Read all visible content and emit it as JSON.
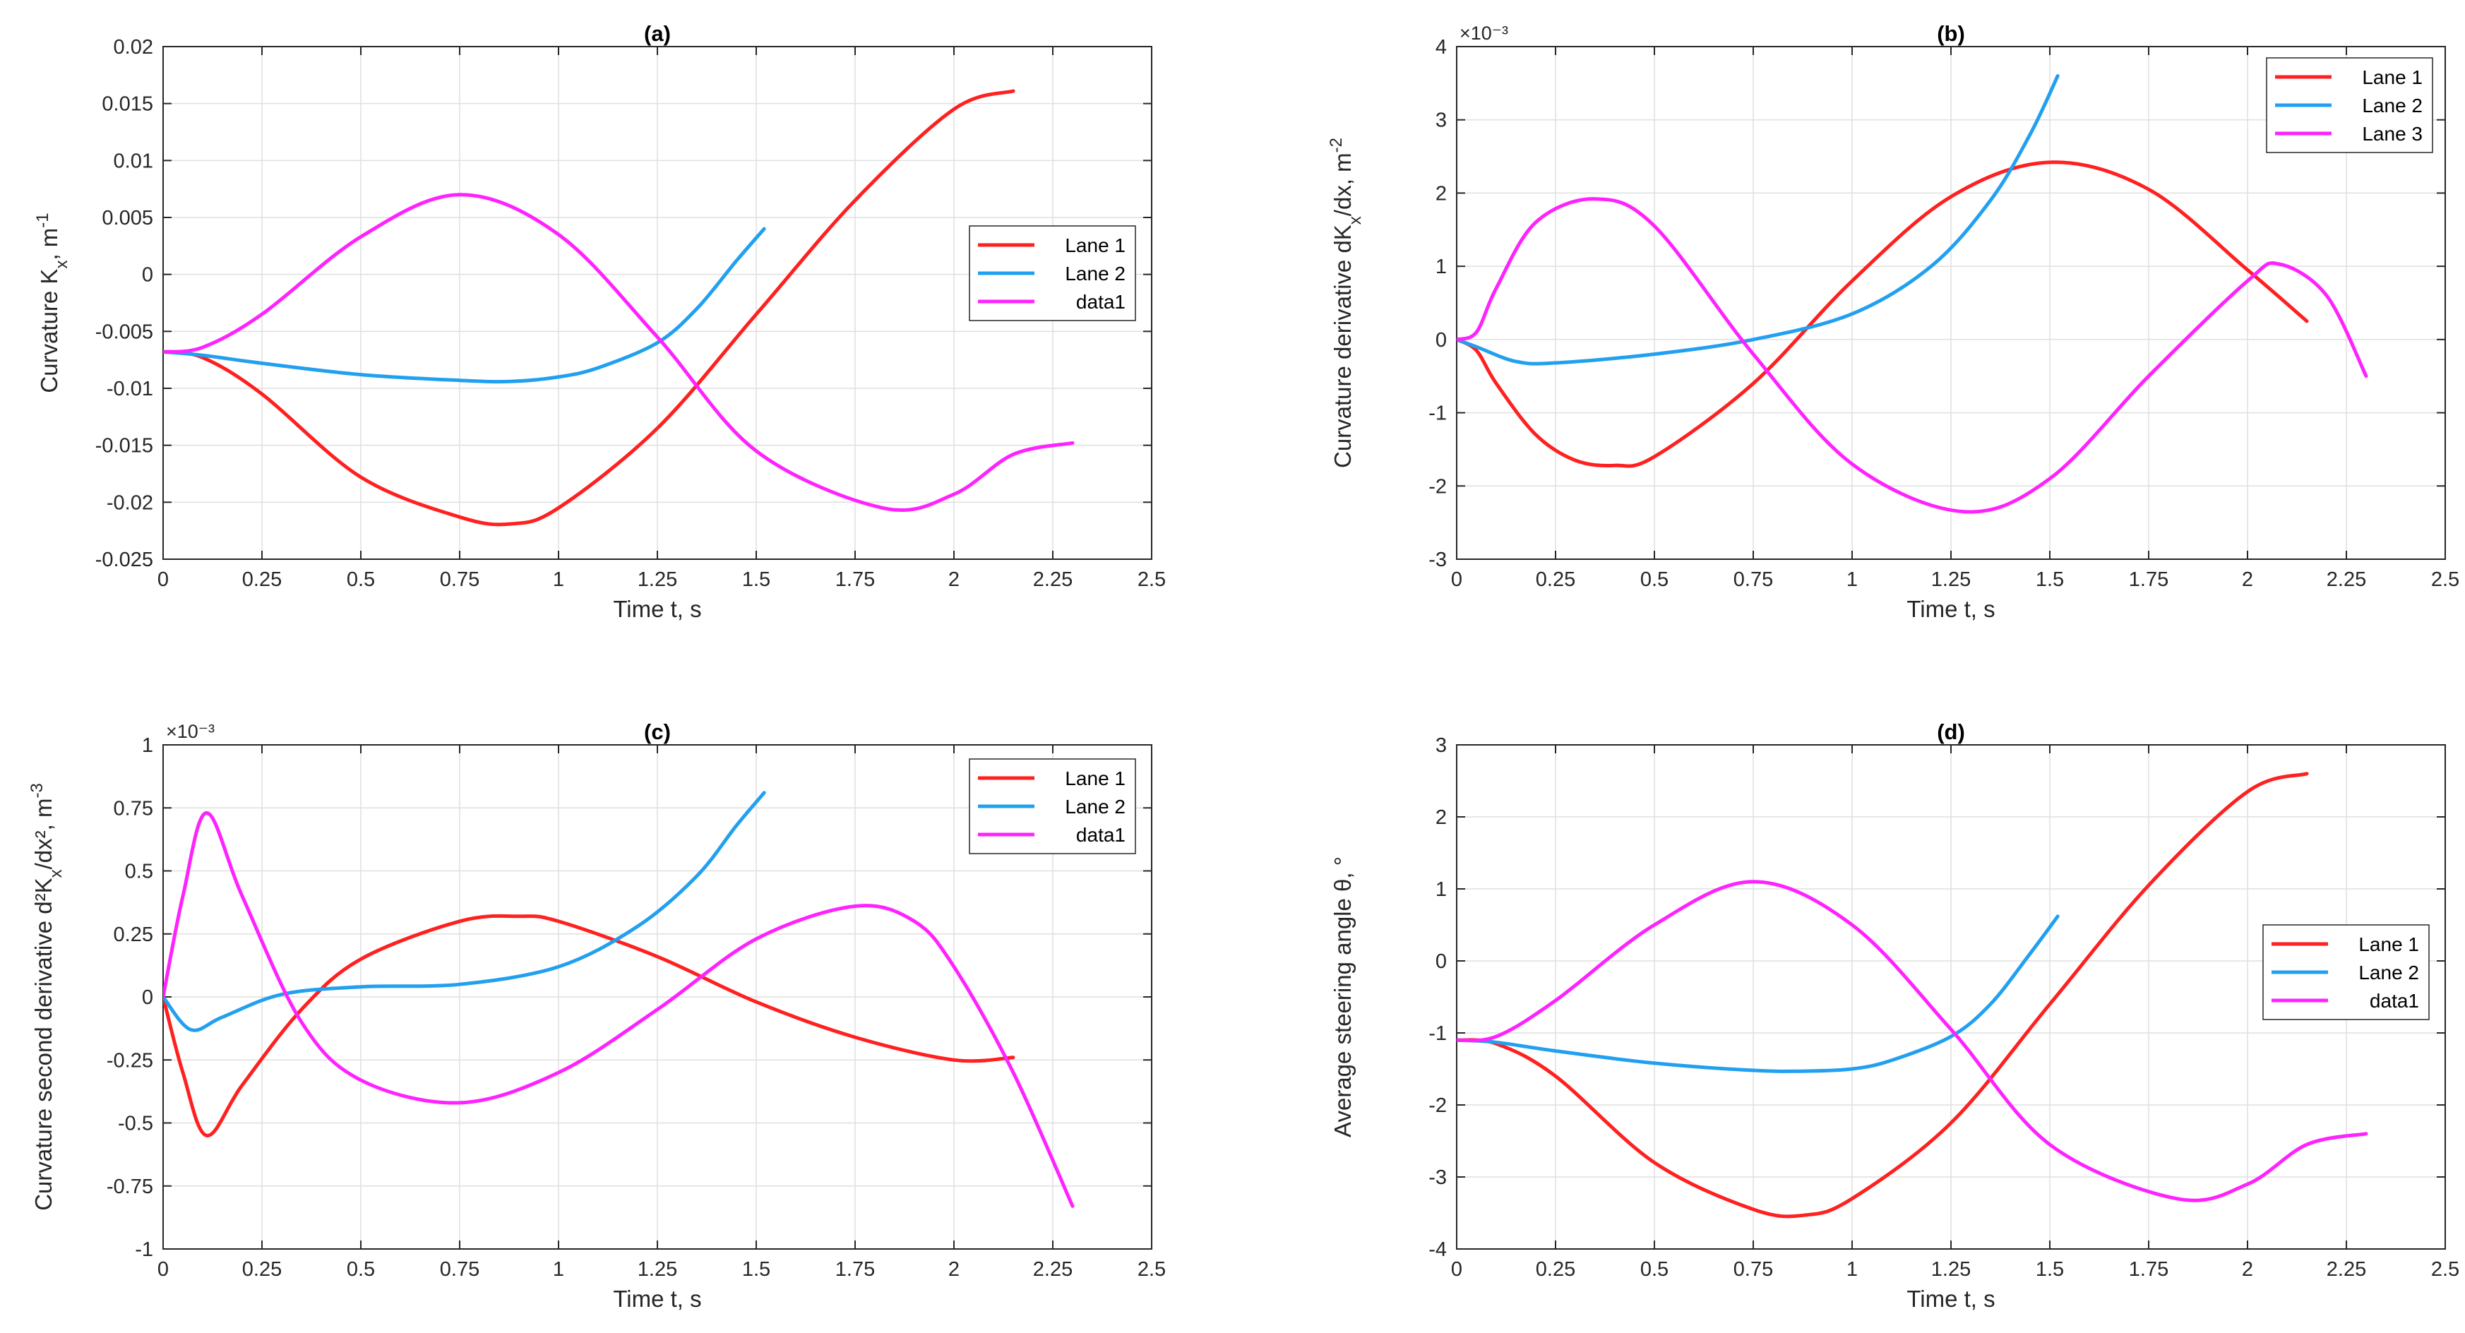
{
  "chart_data": [
    {
      "type": "line",
      "title": "(a)",
      "xlabel": "Time t, s",
      "ylabel": "Curvature K_x, m^-1",
      "xlim": [
        0,
        2.5
      ],
      "ylim": [
        -0.025,
        0.02
      ],
      "xticks": [
        0,
        0.25,
        0.5,
        0.75,
        1,
        1.25,
        1.5,
        1.75,
        2,
        2.25,
        2.5
      ],
      "xtick_labels": [
        "0",
        "0.25",
        "0.5",
        "0.75",
        "1",
        "1.25",
        "1.5",
        "1.75",
        "2",
        "2.25",
        "2.5"
      ],
      "yticks": [
        -0.025,
        -0.02,
        -0.015,
        -0.01,
        -0.005,
        0,
        0.005,
        0.01,
        0.015,
        0.02
      ],
      "ytick_labels": [
        "-0.025",
        "-0.02",
        "-0.015",
        "-0.01",
        "-0.005",
        "0",
        "0.005",
        "0.01",
        "0.015",
        "0.02"
      ],
      "exponent": "",
      "legend_position": "right",
      "series": [
        {
          "name": "Lane 1",
          "color": "#ff2020",
          "x": [
            0,
            0.1,
            0.25,
            0.5,
            0.75,
            0.88,
            1.0,
            1.25,
            1.5,
            1.75,
            2.0,
            2.15
          ],
          "y": [
            -0.0068,
            -0.0073,
            -0.0105,
            -0.0178,
            -0.0213,
            -0.0219,
            -0.0205,
            -0.0135,
            -0.0035,
            0.0065,
            0.0145,
            0.0161
          ]
        },
        {
          "name": "Lane 2",
          "color": "#22a0f0",
          "x": [
            0,
            0.1,
            0.25,
            0.5,
            0.75,
            0.88,
            1.0,
            1.1,
            1.25,
            1.35,
            1.45,
            1.52
          ],
          "y": [
            -0.0068,
            -0.0071,
            -0.0078,
            -0.0088,
            -0.0093,
            -0.0094,
            -0.009,
            -0.0082,
            -0.006,
            -0.003,
            0.0012,
            0.004
          ]
        },
        {
          "name": "data1",
          "color": "#ff22ff",
          "x": [
            0,
            0.1,
            0.25,
            0.5,
            0.75,
            1.0,
            1.25,
            1.5,
            1.82,
            2.0,
            2.15,
            2.3
          ],
          "y": [
            -0.0068,
            -0.0064,
            -0.0035,
            0.0033,
            0.007,
            0.0035,
            -0.0055,
            -0.0155,
            -0.0205,
            -0.0193,
            -0.0158,
            -0.0148
          ]
        }
      ]
    },
    {
      "type": "line",
      "title": "(b)",
      "xlabel": "Time t, s",
      "ylabel": "Curvature derivative dK_x/dx, m^-2",
      "xlim": [
        0,
        2.5
      ],
      "ylim": [
        -3,
        4
      ],
      "xticks": [
        0,
        0.25,
        0.5,
        0.75,
        1,
        1.25,
        1.5,
        1.75,
        2,
        2.25,
        2.5
      ],
      "xtick_labels": [
        "0",
        "0.25",
        "0.5",
        "0.75",
        "1",
        "1.25",
        "1.5",
        "1.75",
        "2",
        "2.25",
        "2.5"
      ],
      "yticks": [
        -3,
        -2,
        -1,
        0,
        1,
        2,
        3,
        4
      ],
      "ytick_labels": [
        "-3",
        "-2",
        "-1",
        "0",
        "1",
        "2",
        "3",
        "4"
      ],
      "exponent": "×10⁻³",
      "legend_position": "top-right",
      "series": [
        {
          "name": "Lane 1",
          "color": "#ff2020",
          "x": [
            0,
            0.05,
            0.1,
            0.2,
            0.3,
            0.4,
            0.5,
            0.75,
            1.0,
            1.25,
            1.5,
            1.75,
            2.0,
            2.15
          ],
          "y": [
            0,
            -0.15,
            -0.6,
            -1.3,
            -1.65,
            -1.72,
            -1.6,
            -0.6,
            0.8,
            1.95,
            2.42,
            2.05,
            0.95,
            0.25
          ]
        },
        {
          "name": "Lane 2",
          "color": "#22a0f0",
          "x": [
            0,
            0.05,
            0.15,
            0.25,
            0.5,
            0.75,
            1.0,
            1.2,
            1.35,
            1.45,
            1.52
          ],
          "y": [
            0,
            -0.1,
            -0.3,
            -0.32,
            -0.2,
            0,
            0.35,
            1.0,
            1.9,
            2.8,
            3.6
          ]
        },
        {
          "name": "Lane 3",
          "color": "#ff22ff",
          "x": [
            0,
            0.05,
            0.1,
            0.2,
            0.35,
            0.5,
            0.75,
            1.0,
            1.28,
            1.5,
            1.75,
            2.0,
            2.08,
            2.2,
            2.3
          ],
          "y": [
            0,
            0.1,
            0.7,
            1.6,
            1.92,
            1.55,
            -0.2,
            -1.7,
            -2.35,
            -1.9,
            -0.5,
            0.8,
            1.03,
            0.6,
            -0.5
          ]
        }
      ]
    },
    {
      "type": "line",
      "title": "(c)",
      "xlabel": "Time t, s",
      "ylabel": "Curvature second derivative d²K_x/dx², m^-3",
      "xlim": [
        0,
        2.5
      ],
      "ylim": [
        -1,
        1
      ],
      "xticks": [
        0,
        0.25,
        0.5,
        0.75,
        1,
        1.25,
        1.5,
        1.75,
        2,
        2.25,
        2.5
      ],
      "xtick_labels": [
        "0",
        "0.25",
        "0.5",
        "0.75",
        "1",
        "1.25",
        "1.5",
        "1.75",
        "2",
        "2.25",
        "2.5"
      ],
      "yticks": [
        -1,
        -0.75,
        -0.5,
        -0.25,
        0,
        0.25,
        0.5,
        0.75,
        1
      ],
      "ytick_labels": [
        "-1",
        "-0.75",
        "-0.5",
        "-0.25",
        "0",
        "0.25",
        "0.5",
        "0.75",
        "1"
      ],
      "exponent": "×10⁻³",
      "legend_position": "top-right",
      "series": [
        {
          "name": "Lane 1",
          "color": "#ff2020",
          "x": [
            0,
            0.05,
            0.11,
            0.2,
            0.35,
            0.5,
            0.75,
            0.9,
            1.0,
            1.25,
            1.5,
            1.75,
            2.0,
            2.15
          ],
          "y": [
            0,
            -0.3,
            -0.55,
            -0.35,
            -0.05,
            0.15,
            0.3,
            0.32,
            0.3,
            0.16,
            -0.02,
            -0.16,
            -0.25,
            -0.24
          ]
        },
        {
          "name": "Lane 2",
          "color": "#22a0f0",
          "x": [
            0,
            0.07,
            0.15,
            0.3,
            0.5,
            0.75,
            1.0,
            1.2,
            1.35,
            1.45,
            1.52
          ],
          "y": [
            0,
            -0.13,
            -0.08,
            0.01,
            0.04,
            0.05,
            0.12,
            0.28,
            0.48,
            0.68,
            0.81
          ]
        },
        {
          "name": "data1",
          "color": "#ff22ff",
          "x": [
            0,
            0.05,
            0.11,
            0.2,
            0.35,
            0.5,
            0.75,
            1.0,
            1.25,
            1.5,
            1.75,
            1.9,
            2.0,
            2.15,
            2.3
          ],
          "y": [
            0,
            0.4,
            0.73,
            0.4,
            -0.1,
            -0.33,
            -0.42,
            -0.3,
            -0.05,
            0.23,
            0.36,
            0.3,
            0.12,
            -0.3,
            -0.83
          ]
        }
      ]
    },
    {
      "type": "line",
      "title": "(d)",
      "xlabel": "Time t, s",
      "ylabel": "Average steering angle θ, °",
      "xlim": [
        0,
        2.5
      ],
      "ylim": [
        -4,
        3
      ],
      "xticks": [
        0,
        0.25,
        0.5,
        0.75,
        1,
        1.25,
        1.5,
        1.75,
        2,
        2.25,
        2.5
      ],
      "xtick_labels": [
        "0",
        "0.25",
        "0.5",
        "0.75",
        "1",
        "1.25",
        "1.5",
        "1.75",
        "2",
        "2.25",
        "2.5"
      ],
      "yticks": [
        -4,
        -3,
        -2,
        -1,
        0,
        1,
        2,
        3
      ],
      "ytick_labels": [
        "-4",
        "-3",
        "-2",
        "-1",
        "0",
        "1",
        "2",
        "3"
      ],
      "exponent": "",
      "legend_position": "right",
      "series": [
        {
          "name": "Lane 1",
          "color": "#ff2020",
          "x": [
            0,
            0.1,
            0.25,
            0.5,
            0.75,
            0.88,
            1.0,
            1.25,
            1.5,
            1.75,
            2.0,
            2.15
          ],
          "y": [
            -1.1,
            -1.15,
            -1.6,
            -2.8,
            -3.45,
            -3.53,
            -3.3,
            -2.25,
            -0.6,
            1.05,
            2.35,
            2.6
          ]
        },
        {
          "name": "Lane 2",
          "color": "#22a0f0",
          "x": [
            0,
            0.1,
            0.25,
            0.5,
            0.75,
            0.88,
            1.0,
            1.1,
            1.25,
            1.35,
            1.45,
            1.52
          ],
          "y": [
            -1.1,
            -1.13,
            -1.25,
            -1.42,
            -1.52,
            -1.53,
            -1.5,
            -1.38,
            -1.05,
            -0.6,
            0.1,
            0.62
          ]
        },
        {
          "name": "data1",
          "color": "#ff22ff",
          "x": [
            0,
            0.1,
            0.25,
            0.5,
            0.75,
            1.0,
            1.25,
            1.5,
            1.82,
            2.0,
            2.15,
            2.3
          ],
          "y": [
            -1.1,
            -1.05,
            -0.55,
            0.5,
            1.1,
            0.5,
            -0.95,
            -2.55,
            -3.3,
            -3.1,
            -2.55,
            -2.4
          ]
        }
      ]
    }
  ]
}
